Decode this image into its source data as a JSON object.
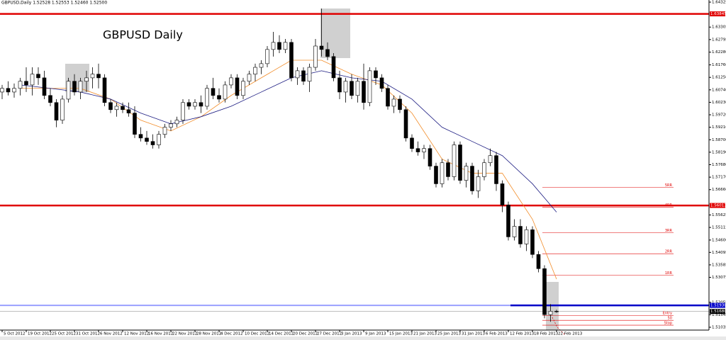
{
  "chart_data": {
    "type": "candlestick",
    "header": "GBPUSD,Daily  1.52528 1.52553 1.52460 1.52500",
    "title": "GBPUSD Daily",
    "categories": [
      "5 Oct 2012",
      null,
      null,
      null,
      "19 Oct 2012",
      null,
      null,
      null,
      "25 Oct 2012",
      null,
      null,
      null,
      "31 Oct 2012",
      null,
      null,
      null,
      "6 Nov 2012",
      null,
      null,
      null,
      "12 Nov 2012",
      null,
      null,
      null,
      "16 Nov 2012",
      null,
      null,
      null,
      "22 Nov 2012",
      null,
      null,
      null,
      "28 Nov 2012",
      null,
      null,
      null,
      "4 Dec 2012",
      null,
      null,
      null,
      "10 Dec 2012",
      null,
      null,
      null,
      "14 Dec 2012",
      null,
      null,
      null,
      "20 Dec 2012",
      null,
      null,
      null,
      "27 Dec 2012",
      null,
      null,
      null,
      "3 Jan 2013",
      null,
      null,
      null,
      "9 Jan 2013",
      null,
      null,
      null,
      "15 Jan 2013",
      null,
      null,
      null,
      "21 Jan 2013",
      null,
      null,
      null,
      "25 Jan 2013",
      null,
      null,
      null,
      "31 Jan 2013",
      null,
      null,
      null,
      "6 Feb 2013",
      null,
      null,
      null,
      "12 Feb 2013",
      null,
      null,
      null,
      "18 Feb 2013",
      null,
      null,
      null,
      "22 Feb 2013"
    ],
    "ohlc": [
      [
        1.6065,
        1.6094,
        1.6036,
        1.608
      ],
      [
        1.608,
        1.6109,
        1.6051,
        1.6065
      ],
      [
        1.6065,
        1.61,
        1.6042,
        1.608
      ],
      [
        1.608,
        1.6123,
        1.6051,
        1.6109
      ],
      [
        1.6109,
        1.6166,
        1.6065,
        1.6094
      ],
      [
        1.6094,
        1.6166,
        1.6051,
        1.6138
      ],
      [
        1.6138,
        1.6166,
        1.6094,
        1.6123
      ],
      [
        1.6123,
        1.6152,
        1.6036,
        1.6051
      ],
      [
        1.6051,
        1.608,
        1.6007,
        1.6022
      ],
      [
        1.6022,
        1.6036,
        1.5921,
        1.595
      ],
      [
        1.595,
        1.6051,
        1.5935,
        1.6036
      ],
      [
        1.6036,
        1.6123,
        1.6022,
        1.6109
      ],
      [
        1.6109,
        1.6138,
        1.6051,
        1.6065
      ],
      [
        1.6065,
        1.6123,
        1.6036,
        1.6109
      ],
      [
        1.6109,
        1.6152,
        1.6065,
        1.6123
      ],
      [
        1.6123,
        1.6166,
        1.608,
        1.6138
      ],
      [
        1.6138,
        1.6181,
        1.608,
        1.6123
      ],
      [
        1.6123,
        1.6138,
        1.6007,
        1.6022
      ],
      [
        1.6022,
        1.6036,
        1.5979,
        1.5993
      ],
      [
        1.5993,
        1.6022,
        1.5964,
        1.6007
      ],
      [
        1.6007,
        1.6022,
        1.5979,
        1.5993
      ],
      [
        1.5993,
        1.6022,
        1.5964,
        1.5979
      ],
      [
        1.5979,
        1.6007,
        1.5877,
        1.5892
      ],
      [
        1.5892,
        1.5921,
        1.5863,
        1.5877
      ],
      [
        1.5877,
        1.5906,
        1.5849,
        1.5863
      ],
      [
        1.5863,
        1.5892,
        1.5834,
        1.5849
      ],
      [
        1.5849,
        1.5906,
        1.5834,
        1.5892
      ],
      [
        1.5892,
        1.5935,
        1.5877,
        1.5921
      ],
      [
        1.5921,
        1.595,
        1.5906,
        1.5935
      ],
      [
        1.5935,
        1.5964,
        1.5921,
        1.595
      ],
      [
        1.595,
        1.6036,
        1.5935,
        1.6022
      ],
      [
        1.6022,
        1.6036,
        1.5993,
        1.6007
      ],
      [
        1.6007,
        1.6036,
        1.5993,
        1.6022
      ],
      [
        1.6022,
        1.6051,
        1.5979,
        1.6007
      ],
      [
        1.6007,
        1.6094,
        1.5993,
        1.608
      ],
      [
        1.608,
        1.6123,
        1.6036,
        1.6051
      ],
      [
        1.6051,
        1.608,
        1.6022,
        1.6036
      ],
      [
        1.6036,
        1.6109,
        1.6022,
        1.6094
      ],
      [
        1.6094,
        1.6138,
        1.608,
        1.6123
      ],
      [
        1.6123,
        1.6138,
        1.6036,
        1.6051
      ],
      [
        1.6051,
        1.6123,
        1.6036,
        1.6109
      ],
      [
        1.6109,
        1.6152,
        1.6094,
        1.6138
      ],
      [
        1.6138,
        1.6181,
        1.6109,
        1.6166
      ],
      [
        1.6166,
        1.6195,
        1.6138,
        1.6181
      ],
      [
        1.6181,
        1.6253,
        1.6166,
        1.6239
      ],
      [
        1.6239,
        1.6311,
        1.621,
        1.6268
      ],
      [
        1.6268,
        1.6297,
        1.6224,
        1.6239
      ],
      [
        1.6239,
        1.6282,
        1.6224,
        1.6268
      ],
      [
        1.6268,
        1.6282,
        1.6109,
        1.6123
      ],
      [
        1.6123,
        1.6166,
        1.6094,
        1.6152
      ],
      [
        1.6152,
        1.6166,
        1.6094,
        1.6109
      ],
      [
        1.6109,
        1.6181,
        1.6065,
        1.6166
      ],
      [
        1.6166,
        1.6282,
        1.6152,
        1.6253
      ],
      [
        1.6253,
        1.6406,
        1.621,
        1.6239
      ],
      [
        1.6239,
        1.6268,
        1.6195,
        1.621
      ],
      [
        1.621,
        1.6224,
        1.6109,
        1.6123
      ],
      [
        1.6123,
        1.6152,
        1.6036,
        1.6065
      ],
      [
        1.6065,
        1.6123,
        1.6022,
        1.6109
      ],
      [
        1.6109,
        1.6138,
        1.6036,
        1.6051
      ],
      [
        1.6051,
        1.6123,
        1.6022,
        1.6109
      ],
      [
        1.6109,
        1.6181,
        1.5993,
        1.6022
      ],
      [
        1.6022,
        1.6166,
        1.6007,
        1.6152
      ],
      [
        1.6152,
        1.6166,
        1.6094,
        1.6123
      ],
      [
        1.6123,
        1.6138,
        1.6065,
        1.608
      ],
      [
        1.608,
        1.6094,
        1.5993,
        1.6007
      ],
      [
        1.6007,
        1.6051,
        1.5979,
        1.6036
      ],
      [
        1.6036,
        1.6051,
        1.5979,
        1.5993
      ],
      [
        1.5993,
        1.6007,
        1.5863,
        1.5877
      ],
      [
        1.5877,
        1.5892,
        1.582,
        1.5834
      ],
      [
        1.5834,
        1.5863,
        1.5805,
        1.582
      ],
      [
        1.582,
        1.5849,
        1.5791,
        1.5834
      ],
      [
        1.5834,
        1.5849,
        1.5747,
        1.5762
      ],
      [
        1.5762,
        1.5776,
        1.5675,
        1.569
      ],
      [
        1.569,
        1.5791,
        1.5675,
        1.5776
      ],
      [
        1.5776,
        1.5791,
        1.5704,
        1.5719
      ],
      [
        1.5719,
        1.5863,
        1.5704,
        1.5849
      ],
      [
        1.5849,
        1.5863,
        1.569,
        1.5704
      ],
      [
        1.5704,
        1.5776,
        1.5675,
        1.5762
      ],
      [
        1.5762,
        1.5776,
        1.5646,
        1.5661
      ],
      [
        1.5661,
        1.5747,
        1.5632,
        1.5719
      ],
      [
        1.5719,
        1.5791,
        1.5704,
        1.5776
      ],
      [
        1.5776,
        1.5834,
        1.5762,
        1.5805
      ],
      [
        1.5805,
        1.582,
        1.5661,
        1.569
      ],
      [
        1.569,
        1.5704,
        1.5574,
        1.5603
      ],
      [
        1.5603,
        1.5617,
        1.5458,
        1.5473
      ],
      [
        1.5473,
        1.5545,
        1.5458,
        1.5516
      ],
      [
        1.5516,
        1.5545,
        1.5429,
        1.5444
      ],
      [
        1.5444,
        1.5516,
        1.5415,
        1.5502
      ],
      [
        1.5502,
        1.5516,
        1.5386,
        1.5401
      ],
      [
        1.5401,
        1.5415,
        1.5328,
        1.5343
      ],
      [
        1.5343,
        1.5357,
        1.514,
        1.5155
      ],
      [
        1.5155,
        1.5198,
        1.5126,
        1.5169
      ],
      [
        1.5169,
        1.5175,
        1.5163,
        1.5168
      ]
    ],
    "up_color": "#ffffff",
    "down_color": "#000000",
    "wick_color": "#000000",
    "moving_averages": [
      {
        "color": "#f28c28",
        "x": [
          3,
          8,
          13,
          18,
          23,
          28,
          33,
          38,
          43,
          48,
          53,
          58,
          63,
          68,
          73,
          78,
          83,
          88,
          92
        ],
        "values": [
          1.608,
          1.608,
          1.608,
          1.6036,
          1.595,
          1.5906,
          1.5964,
          1.6051,
          1.6123,
          1.6195,
          1.6195,
          1.6138,
          1.6094,
          1.5979,
          1.5791,
          1.5733,
          1.5733,
          1.5545,
          1.53
        ]
      },
      {
        "color": "#1a1a80",
        "x": [
          3,
          8,
          13,
          18,
          23,
          28,
          33,
          38,
          43,
          48,
          53,
          58,
          63,
          68,
          73,
          78,
          83,
          88,
          92
        ],
        "values": [
          1.6094,
          1.608,
          1.6065,
          1.6036,
          1.5979,
          1.5935,
          1.5964,
          1.6007,
          1.6065,
          1.6123,
          1.6152,
          1.6123,
          1.6109,
          1.6036,
          1.5921,
          1.5863,
          1.5805,
          1.569,
          1.5574
        ]
      }
    ],
    "hlines": [
      {
        "value": 1.63845,
        "label": "1.63845",
        "color": "#e00000"
      },
      {
        "value": 1.56013,
        "label": "1.56013",
        "color": "#e00000"
      },
      {
        "value": 1.5193,
        "label": "1.51930",
        "color": "#0000c8"
      },
      {
        "value": 1.5168,
        "label": "1.51680",
        "color": "#000000"
      }
    ],
    "levels": [
      {
        "name": "5RR",
        "value": 1.5675
      },
      {
        "name": "4RR",
        "value": 1.5594
      },
      {
        "name": "3RR",
        "value": 1.549
      },
      {
        "name": "2RR",
        "value": 1.5404
      },
      {
        "name": "1RR",
        "value": 1.5317
      },
      {
        "name": "Entry",
        "value": 1.5152
      },
      {
        "name": "50",
        "value": 1.5132
      },
      {
        "name": "Stop",
        "value": 1.5112
      }
    ],
    "level_color": "#e00000",
    "ylim": [
      1.50919,
      1.64412
    ],
    "yticks": [
      1.64325,
      1.63305,
      1.62795,
      {
        "value": 1.6228,
        "label": "1.62280"
      },
      {
        "value": 1.6176,
        "label": "1.61760"
      },
      {
        "value": 1.6125,
        "label": "1.61250"
      },
      {
        "value": 1.6074,
        "label": "1.60740"
      },
      {
        "value": 1.6023,
        "label": "1.60230"
      },
      {
        "value": 1.5972,
        "label": "1.59720"
      },
      {
        "value": 1.5921,
        "label": "1.59210"
      },
      {
        "value": 1.587,
        "label": "1.58700"
      },
      {
        "value": 1.5819,
        "label": "1.58190"
      },
      {
        "value": 1.5768,
        "label": "1.57680"
      },
      {
        "value": 1.5717,
        "label": "1.57170"
      },
      {
        "value": 1.5666,
        "label": "1.56660"
      },
      1.55625,
      1.55115,
      {
        "value": 1.546,
        "label": "1.54600"
      },
      1.54095,
      1.53585,
      1.53075,
      1.52055,
      1.51545,
      1.51035
    ]
  }
}
